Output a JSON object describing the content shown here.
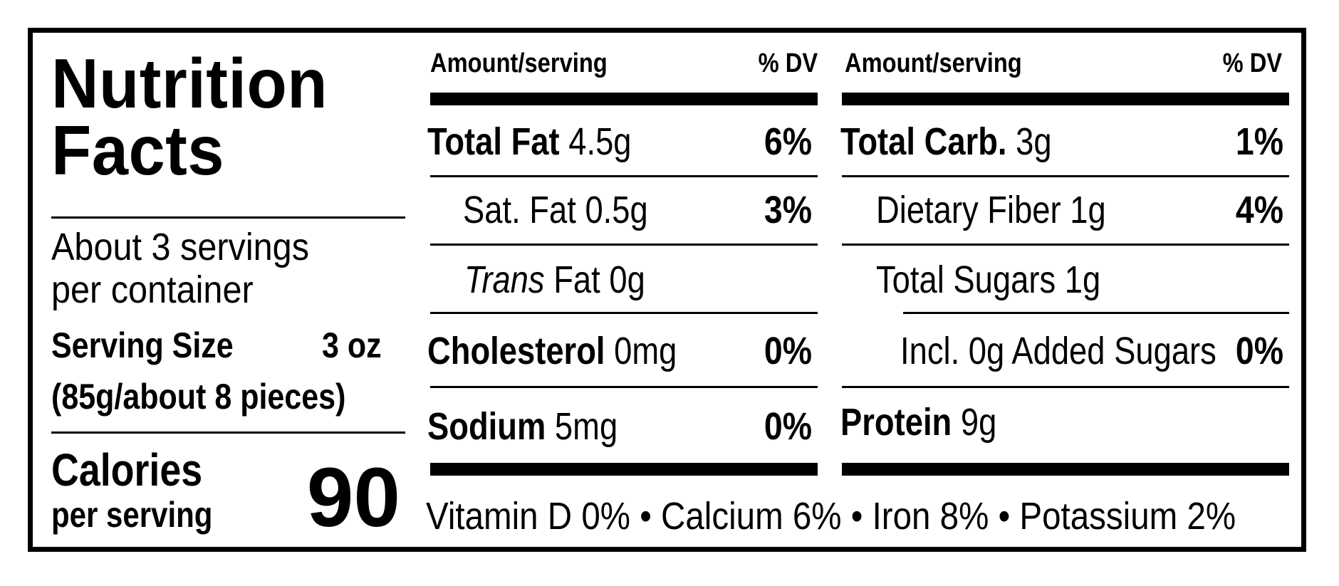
{
  "label": {
    "title_line1": "Nutrition",
    "title_line2": "Facts",
    "servings_line1": "About 3 servings",
    "servings_line2": "per container",
    "serving_size_label": "Serving Size",
    "serving_size_value": "3 oz",
    "serving_size_detail": "(85g/about 8 pieces)",
    "calories_label": "Calories",
    "calories_sub": "per serving",
    "calories_value": "90"
  },
  "left_table": {
    "header_amount": "Amount/serving",
    "header_dv": "% DV",
    "rows": [
      {
        "name": "Total Fat",
        "amount": "4.5g",
        "dv": "6%"
      },
      {
        "name": "Sat. Fat",
        "amount": "0.5g",
        "dv": "3%"
      },
      {
        "name_italic": "Trans",
        "name": "Fat",
        "amount": "0g",
        "dv": ""
      },
      {
        "name": "Cholesterol",
        "amount": "0mg",
        "dv": "0%"
      },
      {
        "name": "Sodium",
        "amount": "5mg",
        "dv": "0%"
      }
    ]
  },
  "right_table": {
    "header_amount": "Amount/serving",
    "header_dv": "% DV",
    "rows": [
      {
        "name": "Total Carb.",
        "amount": "3g",
        "dv": "1%"
      },
      {
        "name": "Dietary Fiber",
        "amount": "1g",
        "dv": "4%"
      },
      {
        "name": "Total Sugars",
        "amount": "1g",
        "dv": ""
      },
      {
        "name": "Incl. 0g Added Sugars",
        "amount": "",
        "dv": "0%"
      },
      {
        "name": "Protein",
        "amount": "9g",
        "dv": ""
      }
    ]
  },
  "vitamins_line": "Vitamin D 0% • Calcium 6% • Iron 8% • Potassium 2%"
}
